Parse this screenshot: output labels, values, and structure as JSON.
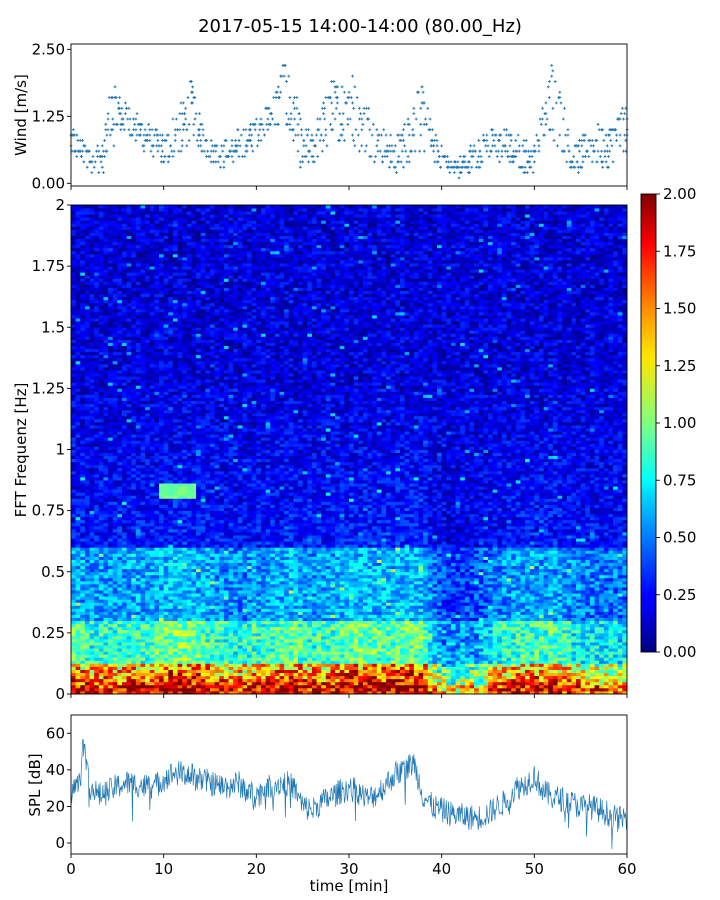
{
  "figure": {
    "title": "2017-05-15 14:00-14:00 (80.00_Hz)"
  },
  "chart_data": [
    {
      "id": "wind",
      "type": "scatter",
      "title": "",
      "xlabel": "",
      "ylabel": "Wind [m/s]",
      "xlim": [
        0,
        60
      ],
      "ylim": [
        -0.05,
        2.6
      ],
      "yticks": [
        0.0,
        1.25,
        2.5
      ],
      "ytick_labels": [
        "0.00",
        "1.25",
        "2.50"
      ],
      "xticks": [
        0,
        10,
        20,
        30,
        40,
        50,
        60
      ],
      "marker_color": "#1f77b4",
      "sample_step_min": 0.125,
      "level_step": 0.1,
      "envelope": {
        "x": [
          0,
          1,
          1.5,
          2.5,
          3.5,
          4.3,
          5,
          6,
          7,
          8,
          9,
          10,
          10.5,
          11.5,
          12.5,
          13,
          14,
          15,
          16,
          17,
          18,
          19,
          20,
          21,
          22,
          23,
          24,
          25,
          26,
          27,
          28,
          29,
          30,
          31,
          32,
          33,
          34,
          35,
          36,
          37,
          38,
          39,
          40,
          41,
          42,
          43,
          44,
          45,
          46,
          47,
          48,
          49,
          50,
          51,
          52,
          53,
          54,
          55,
          56,
          57,
          58,
          59,
          60
        ],
        "low": [
          0.5,
          0.4,
          0.3,
          0.2,
          0.2,
          0.6,
          0.9,
          0.9,
          0.8,
          0.6,
          0.5,
          0.3,
          0.3,
          0.4,
          0.7,
          0.8,
          0.6,
          0.4,
          0.3,
          0.3,
          0.4,
          0.5,
          0.7,
          0.9,
          1.0,
          0.9,
          0.6,
          0.2,
          0.3,
          0.5,
          0.7,
          0.8,
          0.8,
          0.6,
          0.5,
          0.4,
          0.3,
          0.2,
          0.3,
          0.5,
          0.6,
          0.5,
          0.2,
          0.05,
          0.1,
          0.2,
          0.3,
          0.4,
          0.4,
          0.4,
          0.3,
          0.2,
          0.2,
          0.5,
          0.7,
          0.6,
          0.2,
          0.2,
          0.3,
          0.3,
          0.3,
          0.5,
          0.6
        ],
        "high": [
          1.1,
          0.9,
          0.8,
          0.7,
          0.8,
          1.9,
          1.75,
          1.5,
          1.3,
          1.2,
          1.0,
          0.9,
          1.1,
          1.4,
          1.7,
          1.95,
          1.2,
          0.9,
          0.8,
          0.8,
          1.0,
          1.1,
          1.2,
          1.4,
          1.7,
          2.4,
          1.9,
          1.0,
          1.0,
          1.5,
          2.0,
          1.85,
          2.35,
          1.6,
          1.5,
          1.2,
          1.0,
          0.8,
          1.2,
          1.9,
          1.8,
          1.0,
          0.7,
          0.5,
          0.5,
          0.7,
          0.9,
          1.0,
          1.0,
          1.0,
          0.9,
          0.8,
          0.8,
          1.5,
          2.5,
          1.6,
          0.8,
          0.9,
          1.0,
          1.1,
          1.1,
          1.4,
          1.4
        ]
      }
    },
    {
      "id": "spectrogram",
      "type": "heatmap",
      "title": "",
      "xlabel": "",
      "ylabel": "FFT Frequenz [Hz]",
      "xlim": [
        0,
        60
      ],
      "ylim": [
        0,
        2
      ],
      "yticks": [
        0,
        0.25,
        0.5,
        0.75,
        1,
        1.25,
        1.5,
        1.75,
        2
      ],
      "ytick_labels": [
        "0",
        "0.25",
        "0.5",
        "0.75",
        "1",
        "1.25",
        "1.5",
        "1.75",
        "2"
      ],
      "xticks": [
        0,
        10,
        20,
        30,
        40,
        50,
        60
      ],
      "colormap": "jet",
      "time_bins": 120,
      "freq_bins": 160,
      "colorbar": {
        "vmin": 0.0,
        "vmax": 2.0,
        "ticks": [
          0.0,
          0.25,
          0.5,
          0.75,
          1.0,
          1.25,
          1.5,
          1.75,
          2.0
        ],
        "tick_labels": [
          "0.00",
          "0.25",
          "0.50",
          "0.75",
          "1.00",
          "1.25",
          "1.50",
          "1.75",
          "2.00"
        ]
      },
      "activity_profile": {
        "x": [
          0,
          2,
          4,
          6,
          8,
          10,
          12,
          14,
          16,
          18,
          20,
          22,
          24,
          26,
          28,
          30,
          32,
          34,
          36,
          38,
          40,
          42,
          44,
          46,
          48,
          50,
          52,
          54,
          56,
          58,
          60
        ],
        "level": [
          1.0,
          0.75,
          0.8,
          0.85,
          0.85,
          1.0,
          1.1,
          0.95,
          0.8,
          0.7,
          0.8,
          0.9,
          1.0,
          0.8,
          0.85,
          1.0,
          1.0,
          0.95,
          1.05,
          1.0,
          0.3,
          0.25,
          0.35,
          0.7,
          0.85,
          0.85,
          0.9,
          0.7,
          0.6,
          0.6,
          0.55
        ]
      },
      "features": {
        "low_freq_band_hz": [
          0,
          0.12
        ],
        "mid_band_hz": [
          0.12,
          0.6
        ],
        "notable_patch": {
          "x": [
            9.5,
            13.5
          ],
          "freq": [
            0.8,
            0.86
          ]
        }
      }
    },
    {
      "id": "spl",
      "type": "line",
      "title": "",
      "xlabel": "time [min]",
      "ylabel": "SPL [dB]",
      "xlim": [
        0,
        60
      ],
      "ylim": [
        -6,
        70
      ],
      "yticks": [
        0,
        20,
        40,
        60
      ],
      "ytick_labels": [
        "0",
        "20",
        "40",
        "60"
      ],
      "xticks": [
        0,
        10,
        20,
        30,
        40,
        50,
        60
      ],
      "xtick_labels": [
        "0",
        "10",
        "20",
        "30",
        "40",
        "50",
        "60"
      ],
      "line_color": "#1f77b4",
      "samples_per_min": 16,
      "noise_band_db": 7,
      "trend": {
        "x": [
          0,
          0.5,
          1,
          1.3,
          2,
          3,
          4,
          5,
          6,
          7,
          8,
          9,
          10,
          11,
          12,
          13,
          14,
          15,
          16,
          17,
          18,
          19,
          20,
          21,
          22,
          23,
          24,
          25,
          26,
          27,
          28,
          29,
          30,
          31,
          32,
          33,
          34,
          35,
          36,
          37,
          38,
          39,
          40,
          41,
          42,
          43,
          44,
          45,
          46,
          47,
          48,
          49,
          50,
          51,
          52,
          53,
          54,
          55,
          56,
          57,
          58,
          59,
          60
        ],
        "y": [
          28,
          31,
          33,
          57,
          31,
          26,
          28,
          31,
          33,
          32,
          31,
          31,
          35,
          38,
          38,
          37,
          35,
          33,
          31,
          31,
          33,
          28,
          26,
          30,
          32,
          33,
          31,
          20,
          18,
          22,
          25,
          28,
          30,
          28,
          24,
          27,
          32,
          38,
          40,
          44,
          26,
          20,
          18,
          16,
          15,
          14,
          14,
          16,
          20,
          23,
          30,
          32,
          37,
          28,
          25,
          24,
          22,
          20,
          20,
          18,
          16,
          13,
          14
        ]
      }
    }
  ]
}
